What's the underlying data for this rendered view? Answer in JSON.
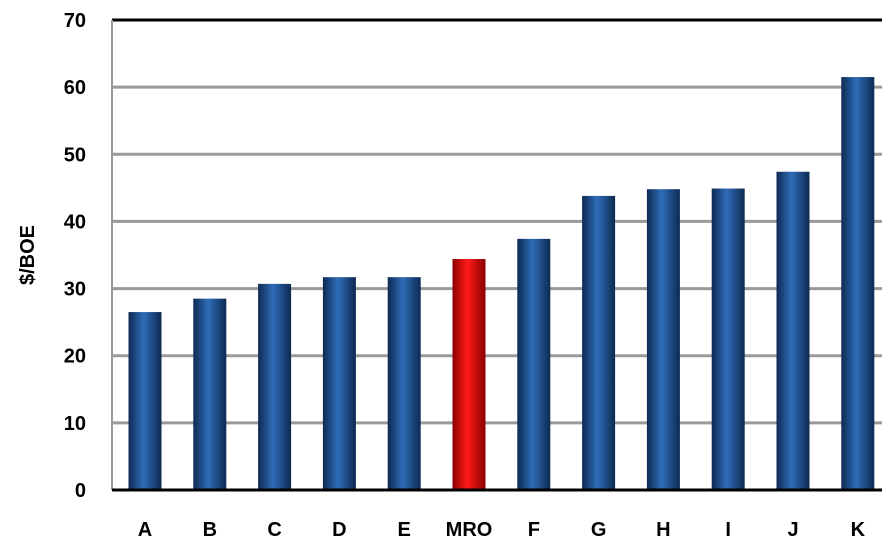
{
  "chart_data": {
    "type": "bar",
    "title": "",
    "xlabel": "",
    "ylabel": "$/BOE",
    "ylim": [
      0,
      70
    ],
    "yticks": [
      0,
      10,
      20,
      30,
      40,
      50,
      60,
      70
    ],
    "grid": "horizontal",
    "categories": [
      "A",
      "B",
      "C",
      "D",
      "E",
      "MRO",
      "F",
      "G",
      "H",
      "I",
      "J",
      "K"
    ],
    "values": [
      26.5,
      28.5,
      30.7,
      31.7,
      31.7,
      34.4,
      37.4,
      43.8,
      44.8,
      44.9,
      47.4,
      61.5
    ],
    "highlight_category": "MRO",
    "colors": {
      "bar": "#1f4e8c",
      "highlight": "#d00000",
      "grid": "#9a9a9a",
      "axis": "#000000"
    }
  }
}
